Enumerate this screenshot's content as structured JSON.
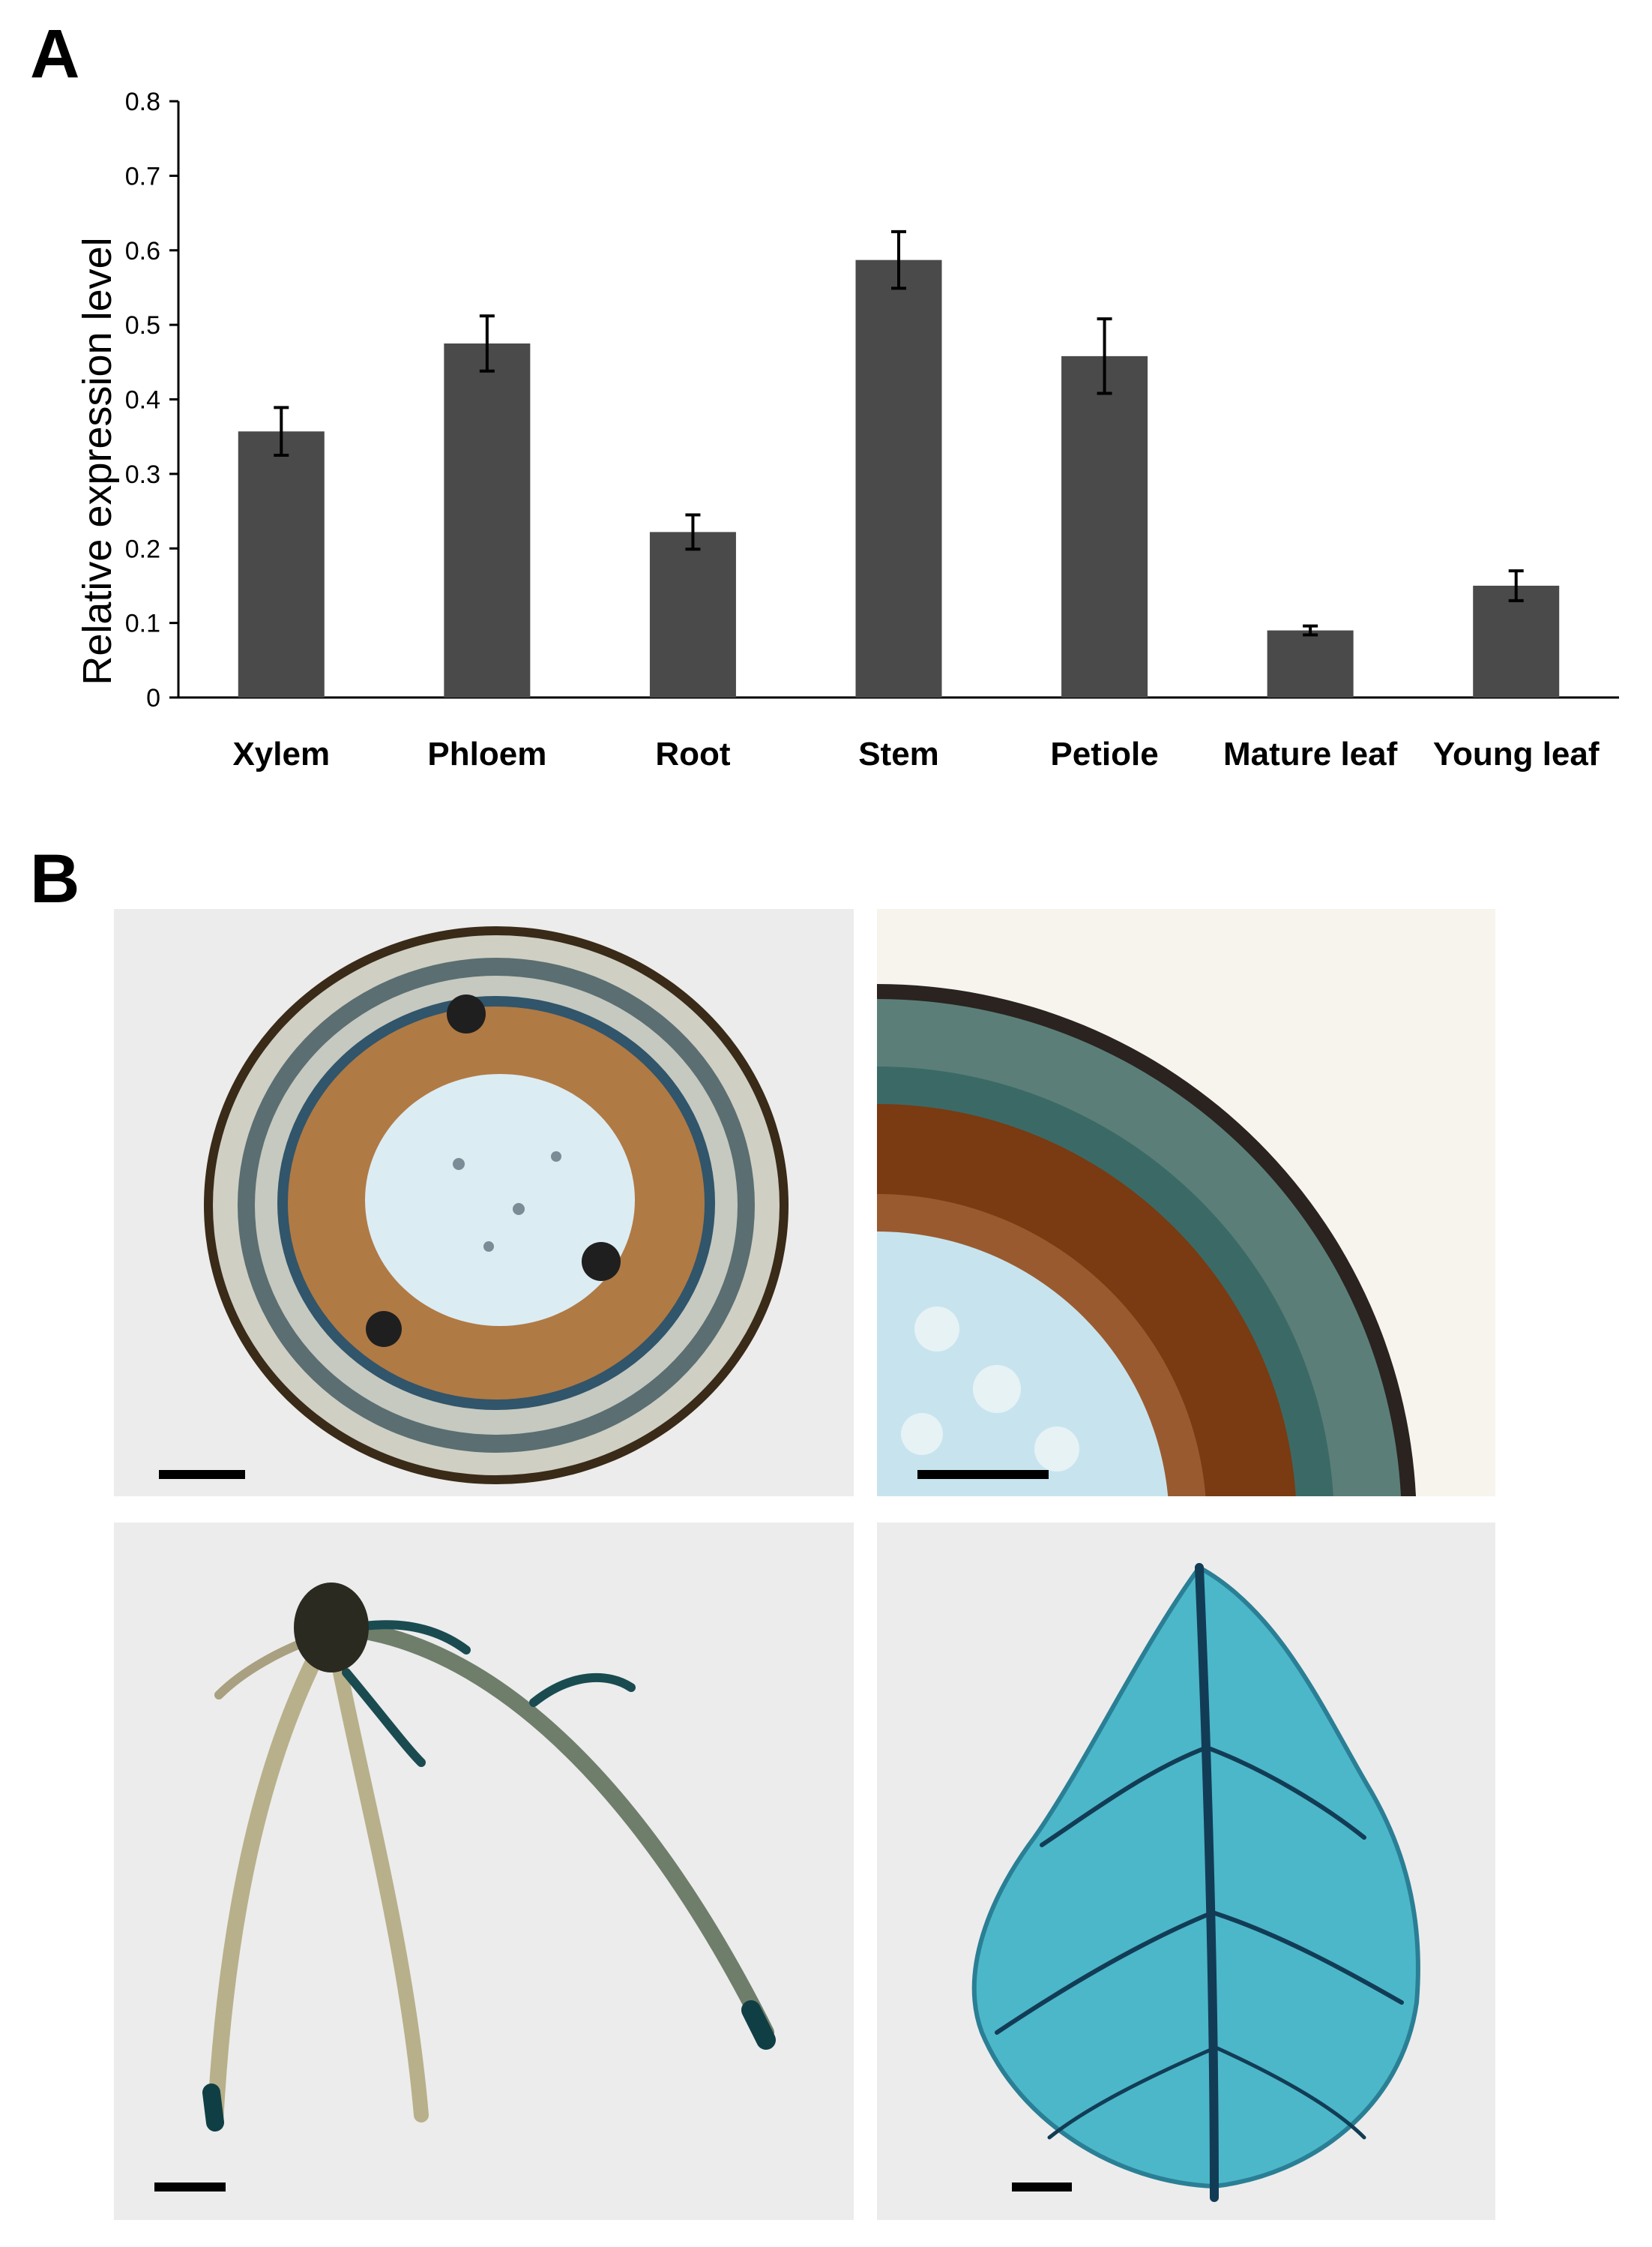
{
  "panels": {
    "a_label": "A",
    "b_label": "B"
  },
  "chart_data": {
    "type": "bar",
    "title": "",
    "xlabel": "",
    "ylabel": "Relative expression level",
    "ylim": [
      0,
      0.8
    ],
    "yticks": [
      0,
      0.1,
      0.2,
      0.3,
      0.4,
      0.5,
      0.6,
      0.7,
      0.8
    ],
    "ytick_labels": [
      "0",
      "0.1",
      "0.2",
      "0.3",
      "0.4",
      "0.5",
      "0.6",
      "0.7",
      "0.8"
    ],
    "categories": [
      "Xylem",
      "Phloem",
      "Root",
      "Stem",
      "Petiole",
      "Mature leaf",
      "Young leaf"
    ],
    "values": [
      0.357,
      0.475,
      0.222,
      0.587,
      0.458,
      0.09,
      0.15
    ],
    "errors": [
      0.032,
      0.037,
      0.023,
      0.038,
      0.05,
      0.006,
      0.02
    ],
    "bar_color": "#4a4a4a",
    "grid": false,
    "legend": "none"
  },
  "images": [
    {
      "name": "stem-cross-section",
      "colors": [
        "#b07a45",
        "#3c3c3c",
        "#d8ecf2"
      ]
    },
    {
      "name": "stem-cross-section-detail",
      "colors": [
        "#7a3a12",
        "#2e5f5a",
        "#c7e4ee"
      ]
    },
    {
      "name": "root-system",
      "colors": [
        "#0f3f44",
        "#b8b08a"
      ]
    },
    {
      "name": "leaf",
      "colors": [
        "#4cb7c9",
        "#123c55"
      ]
    }
  ]
}
